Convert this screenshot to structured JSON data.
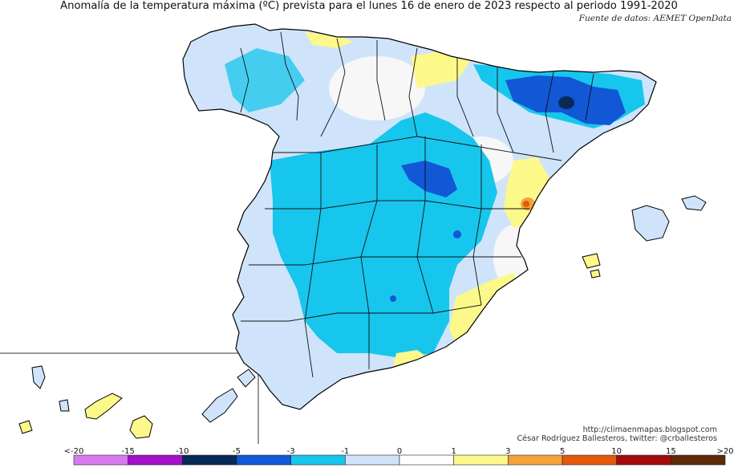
{
  "title": "Anomalía de la temperatura máxima (ºC) prevista para el lunes 16 de enero de 2023 respecto al periodo 1991-2020",
  "source": "Fuente de datos: AEMET OpenData",
  "credit": {
    "url": "http://climaenmapas.blogspot.com",
    "author": "César Rodríguez Ballesteros, twitter: @crballesteros"
  },
  "colors": {
    "land_outline": "#000000",
    "sea": "#ffffff",
    "neutral_white": "#f7f7f7",
    "anomaly_pos_1_3": "#fdf88a",
    "anomaly_pos_3_5": "#f7b74a",
    "anomaly_pos_5_10": "#ee7a1f"
  },
  "legend": {
    "labels": [
      "<-20",
      "-15",
      "-10",
      "-5",
      "-3",
      "-1",
      "0",
      "1",
      "3",
      "5",
      "10",
      "15",
      ">20"
    ],
    "bins": [
      {
        "range": "<-20 a -15",
        "color": "#d77af0"
      },
      {
        "range": "-15 a -10",
        "color": "#a311c8"
      },
      {
        "range": "-10 a -5",
        "color": "#092a57"
      },
      {
        "range": "-5 a -3",
        "color": "#1157d6"
      },
      {
        "range": "-3 a -1",
        "color": "#17c6ec"
      },
      {
        "range": "-1 a 0",
        "color": "#cfe4fa"
      },
      {
        "range": "0 a 1",
        "color": "#ffffff"
      },
      {
        "range": "1 a 3",
        "color": "#fdf88a"
      },
      {
        "range": "3 a 5",
        "color": "#f3a33a"
      },
      {
        "range": "5 a 10",
        "color": "#e4590c"
      },
      {
        "range": "10 a 15",
        "color": "#a30c0c"
      },
      {
        "range": ">15 a 20",
        "color": "#5c2a0a"
      }
    ]
  }
}
